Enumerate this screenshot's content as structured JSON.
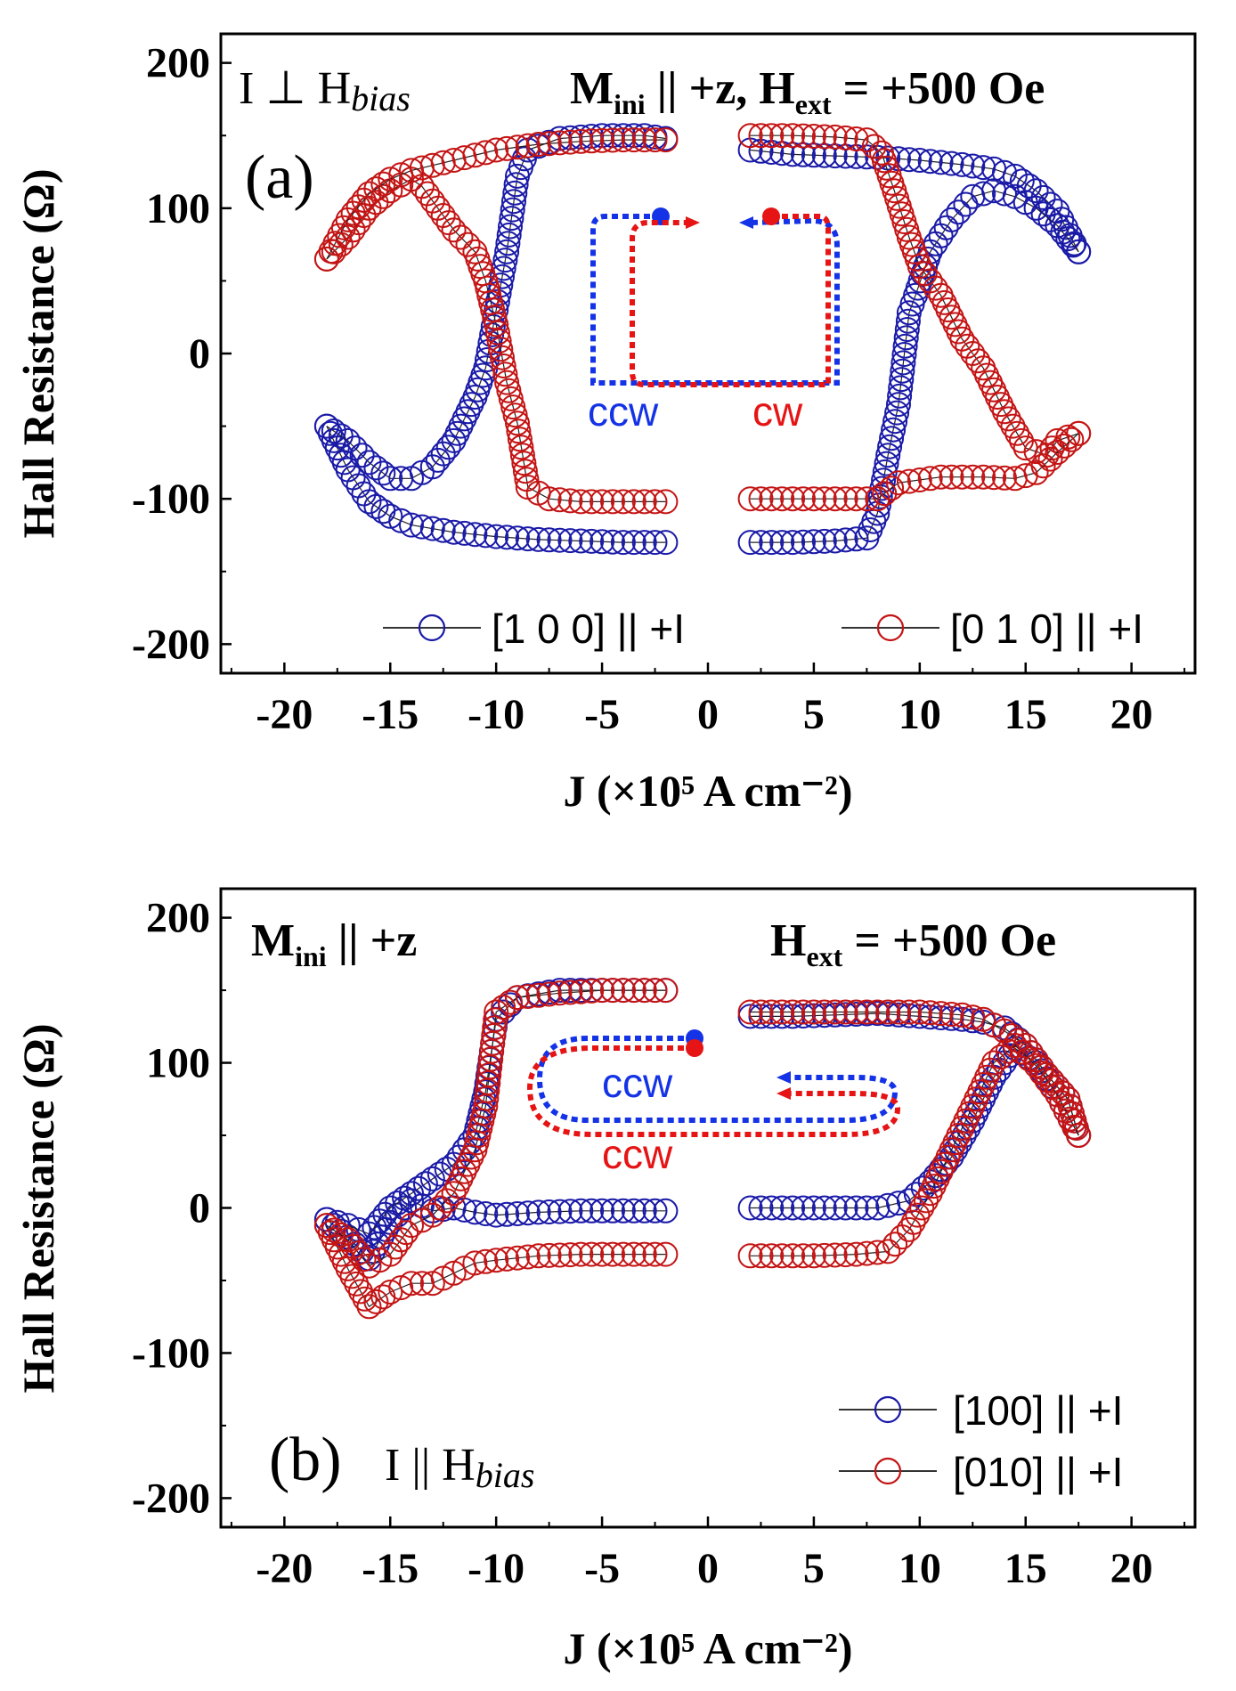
{
  "chart_data": [
    {
      "type": "scatter",
      "panel_label": "(a)",
      "xlabel": "J (×10⁵ A cm⁻²)",
      "ylabel": "Hall Resistance (Ω)",
      "xlim": [
        -23,
        23
      ],
      "ylim": [
        -220,
        220
      ],
      "xticks": [
        -20,
        -15,
        -10,
        -5,
        0,
        5,
        10,
        15,
        20
      ],
      "yticks": [
        -200,
        -100,
        0,
        100,
        200
      ],
      "annotations": {
        "geometry": "I ⊥ H",
        "geometry_sub": "bias",
        "cond_m": "M",
        "cond_m_sub": "ini",
        "cond_m_rest": " || +z,  H",
        "cond_h_sub": "ext",
        "cond_h_rest": " = +500 Oe",
        "dir_blue": "ccw",
        "dir_red": "cw"
      },
      "series": [
        {
          "name": "[1 0 0] || +I",
          "color": "#1a1aa8",
          "branches": [
            [
              [
                -2,
                -130
              ],
              [
                -4,
                -130
              ],
              [
                -6,
                -129
              ],
              [
                -8,
                -128
              ],
              [
                -10,
                -126
              ],
              [
                -12,
                -123
              ],
              [
                -14,
                -118
              ],
              [
                -15,
                -112
              ],
              [
                -16,
                -102
              ],
              [
                -17,
                -80
              ],
              [
                -18,
                -50
              ]
            ],
            [
              [
                -18,
                -50
              ],
              [
                -17,
                -60
              ],
              [
                -16,
                -75
              ],
              [
                -15,
                -86
              ],
              [
                -14,
                -86
              ],
              [
                -13,
                -78
              ],
              [
                -12,
                -60
              ],
              [
                -11,
                -30
              ],
              [
                -10.5,
                -10
              ],
              [
                -10,
                30
              ],
              [
                -9.5,
                70
              ],
              [
                -9,
                122
              ],
              [
                -8.5,
                140
              ],
              [
                -7,
                148
              ],
              [
                -5,
                150
              ],
              [
                -3,
                150
              ],
              [
                -2,
                148
              ]
            ],
            [
              [
                2,
                140
              ],
              [
                4,
                137
              ],
              [
                6,
                136
              ],
              [
                8,
                135
              ],
              [
                10,
                133
              ],
              [
                12,
                130
              ],
              [
                13.5,
                127
              ],
              [
                14.5,
                122
              ],
              [
                15.5,
                112
              ],
              [
                16.5,
                98
              ],
              [
                17.5,
                70
              ]
            ],
            [
              [
                17.5,
                70
              ],
              [
                16.5,
                88
              ],
              [
                15.5,
                100
              ],
              [
                14.5,
                108
              ],
              [
                13.5,
                112
              ],
              [
                12.5,
                108
              ],
              [
                11.5,
                92
              ],
              [
                10.5,
                70
              ],
              [
                9.8,
                40
              ],
              [
                9.5,
                28
              ],
              [
                9,
                -35
              ],
              [
                8.5,
                -70
              ],
              [
                8,
                -110
              ],
              [
                7.5,
                -127
              ],
              [
                6,
                -129
              ],
              [
                4,
                -130
              ],
              [
                2,
                -130
              ]
            ]
          ]
        },
        {
          "name": "[0 1 0] || +I",
          "color": "#c41414",
          "branches": [
            [
              [
                -2,
                -102
              ],
              [
                -4,
                -102
              ],
              [
                -6,
                -102
              ],
              [
                -7.5,
                -100
              ],
              [
                -8.5,
                -92
              ],
              [
                -9,
                -48
              ],
              [
                -9.5,
                -20
              ],
              [
                -10,
                20
              ],
              [
                -10.5,
                50
              ],
              [
                -11,
                70
              ],
              [
                -12,
                85
              ],
              [
                -13,
                105
              ],
              [
                -13.5,
                115
              ],
              [
                -14,
                120
              ],
              [
                -15,
                112
              ],
              [
                -16,
                100
              ],
              [
                -17,
                80
              ],
              [
                -18,
                65
              ]
            ],
            [
              [
                -18,
                65
              ],
              [
                -17,
                92
              ],
              [
                -16,
                110
              ],
              [
                -15,
                120
              ],
              [
                -14,
                126
              ],
              [
                -12,
                133
              ],
              [
                -10,
                140
              ],
              [
                -8,
                144
              ],
              [
                -6,
                146
              ],
              [
                -4,
                147
              ],
              [
                -2,
                147
              ]
            ],
            [
              [
                2,
                150
              ],
              [
                4,
                150
              ],
              [
                6,
                149
              ],
              [
                7.5,
                147
              ],
              [
                8.2,
                138
              ],
              [
                8.8,
                112
              ],
              [
                9.5,
                80
              ],
              [
                10,
                60
              ],
              [
                11,
                40
              ],
              [
                12,
                10
              ],
              [
                13,
                -10
              ],
              [
                14,
                -40
              ],
              [
                15,
                -65
              ],
              [
                16,
                -70
              ],
              [
                16.5,
                -60
              ],
              [
                17.5,
                -55
              ]
            ],
            [
              [
                17.5,
                -55
              ],
              [
                16.5,
                -68
              ],
              [
                15.5,
                -82
              ],
              [
                14.5,
                -86
              ],
              [
                13,
                -85
              ],
              [
                11,
                -85
              ],
              [
                9,
                -89
              ],
              [
                8,
                -100
              ],
              [
                6,
                -100
              ],
              [
                4,
                -100
              ],
              [
                2,
                -100
              ]
            ]
          ]
        }
      ],
      "legend": [
        "[1 0 0] || +I",
        "[0 1 0] || +I"
      ],
      "legend_position": "bottom"
    },
    {
      "type": "scatter",
      "panel_label": "(b)",
      "xlabel": "J (×10⁵ A cm⁻²)",
      "ylabel": "Hall Resistance (Ω)",
      "xlim": [
        -23,
        23
      ],
      "ylim": [
        -220,
        220
      ],
      "xticks": [
        -20,
        -15,
        -10,
        -5,
        0,
        5,
        10,
        15,
        20
      ],
      "yticks": [
        -200,
        -100,
        0,
        100,
        200
      ],
      "annotations": {
        "cond_m": "M",
        "cond_m_sub": "ini",
        "cond_m_rest": " || +z",
        "cond_h": "H",
        "cond_h_sub": "ext",
        "cond_h_rest": " = +500 Oe",
        "geometry": "I || H",
        "geometry_sub": "bias",
        "dir_blue": "ccw",
        "dir_red": "ccw"
      },
      "series": [
        {
          "name": "[100] || +I",
          "color": "#1a1aa8",
          "branches": [
            [
              [
                -2,
                -2
              ],
              [
                -4,
                -2
              ],
              [
                -6,
                -2
              ],
              [
                -8,
                -3
              ],
              [
                -10,
                -5
              ],
              [
                -11,
                -3
              ],
              [
                -12,
                0
              ],
              [
                -13,
                -2
              ],
              [
                -14,
                5
              ],
              [
                -15,
                -10
              ],
              [
                -16,
                -35
              ],
              [
                -17,
                -20
              ],
              [
                -18,
                -8
              ]
            ],
            [
              [
                -18,
                -8
              ],
              [
                -17,
                -12
              ],
              [
                -16,
                -18
              ],
              [
                -15,
                0
              ],
              [
                -14,
                10
              ],
              [
                -13,
                20
              ],
              [
                -12,
                30
              ],
              [
                -11,
                50
              ],
              [
                -10.5,
                80
              ],
              [
                -10,
                130
              ],
              [
                -9,
                145
              ],
              [
                -7,
                150
              ],
              [
                -5,
                150
              ],
              [
                -3,
                150
              ],
              [
                -2,
                150
              ]
            ],
            [
              [
                2,
                132
              ],
              [
                4,
                132
              ],
              [
                6,
                133
              ],
              [
                8,
                134
              ],
              [
                10,
                132
              ],
              [
                12,
                130
              ],
              [
                13,
                128
              ],
              [
                14,
                124
              ],
              [
                15,
                112
              ],
              [
                16,
                92
              ],
              [
                17,
                75
              ],
              [
                17.5,
                50
              ]
            ],
            [
              [
                17.5,
                50
              ],
              [
                16.5,
                78
              ],
              [
                15.5,
                100
              ],
              [
                14.5,
                110
              ],
              [
                13.5,
                90
              ],
              [
                12.5,
                60
              ],
              [
                11.5,
                35
              ],
              [
                10.5,
                18
              ],
              [
                9.5,
                5
              ],
              [
                8,
                0
              ],
              [
                6,
                0
              ],
              [
                4,
                0
              ],
              [
                2,
                0
              ]
            ]
          ]
        },
        {
          "name": "[010] || +I",
          "color": "#c41414",
          "branches": [
            [
              [
                -2,
                -32
              ],
              [
                -4,
                -32
              ],
              [
                -6,
                -32
              ],
              [
                -8,
                -33
              ],
              [
                -10,
                -36
              ],
              [
                -11,
                -38
              ],
              [
                -12,
                -45
              ],
              [
                -13,
                -52
              ],
              [
                -14,
                -52
              ],
              [
                -15,
                -58
              ],
              [
                -16,
                -68
              ],
              [
                -17,
                -42
              ],
              [
                -18,
                -12
              ]
            ],
            [
              [
                -18,
                -12
              ],
              [
                -17,
                -22
              ],
              [
                -16,
                -40
              ],
              [
                -15,
                -32
              ],
              [
                -14,
                -12
              ],
              [
                -13,
                -5
              ],
              [
                -12,
                10
              ],
              [
                -11,
                40
              ],
              [
                -10.5,
                70
              ],
              [
                -10,
                135
              ],
              [
                -9,
                145
              ],
              [
                -7,
                148
              ],
              [
                -5,
                150
              ],
              [
                -3,
                150
              ],
              [
                -2,
                150
              ]
            ],
            [
              [
                2,
                135
              ],
              [
                4,
                135
              ],
              [
                6,
                135
              ],
              [
                8,
                135
              ],
              [
                10,
                135
              ],
              [
                12,
                133
              ],
              [
                13,
                130
              ],
              [
                14,
                122
              ],
              [
                15,
                112
              ],
              [
                16,
                92
              ],
              [
                17,
                75
              ],
              [
                17.5,
                50
              ]
            ],
            [
              [
                17.5,
                50
              ],
              [
                16.5,
                78
              ],
              [
                15.5,
                98
              ],
              [
                14.5,
                112
              ],
              [
                13.5,
                100
              ],
              [
                12.5,
                70
              ],
              [
                11.5,
                40
              ],
              [
                10.5,
                10
              ],
              [
                9.5,
                -15
              ],
              [
                8.5,
                -30
              ],
              [
                7,
                -32
              ],
              [
                5,
                -33
              ],
              [
                3,
                -33
              ],
              [
                2,
                -33
              ]
            ]
          ]
        }
      ],
      "legend": [
        "[100] || +I",
        "[010] || +I"
      ],
      "legend_position": "bottom-right"
    }
  ]
}
